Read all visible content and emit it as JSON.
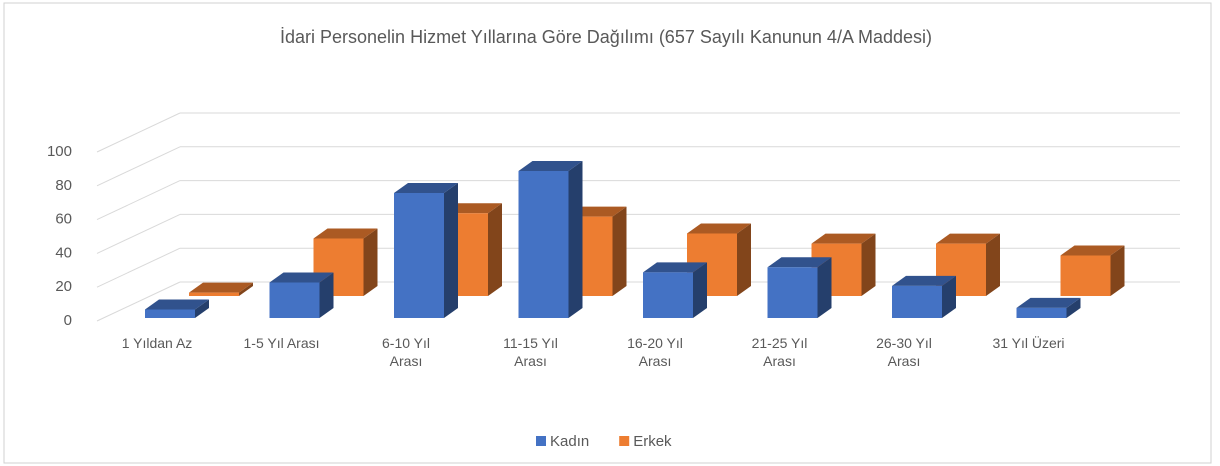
{
  "chart_data": {
    "type": "bar3d",
    "title": "İdari Personelin Hizmet Yıllarına Göre Dağılımı (657 Sayılı Kanunun 4/A Maddesi)",
    "categories": [
      "1 Yıldan Az",
      "1-5 Yıl Arası",
      "6-10 Yıl Arası",
      "11-15 Yıl Arası",
      "16-20 Yıl Arası",
      "21-25 Yıl Arası",
      "26-30 Yıl Arası",
      "31 Yıl Üzeri"
    ],
    "series": [
      {
        "name": "Kadın",
        "color": "#4472c4",
        "values": [
          5,
          21,
          74,
          87,
          27,
          30,
          19,
          6
        ]
      },
      {
        "name": "Erkek",
        "color": "#ed7d31",
        "values": [
          2,
          34,
          49,
          47,
          37,
          31,
          31,
          24
        ]
      }
    ],
    "ylim": [
      0,
      100
    ],
    "yticks": [
      0,
      20,
      40,
      60,
      80,
      100
    ],
    "grid": true,
    "legend": "bottom"
  }
}
